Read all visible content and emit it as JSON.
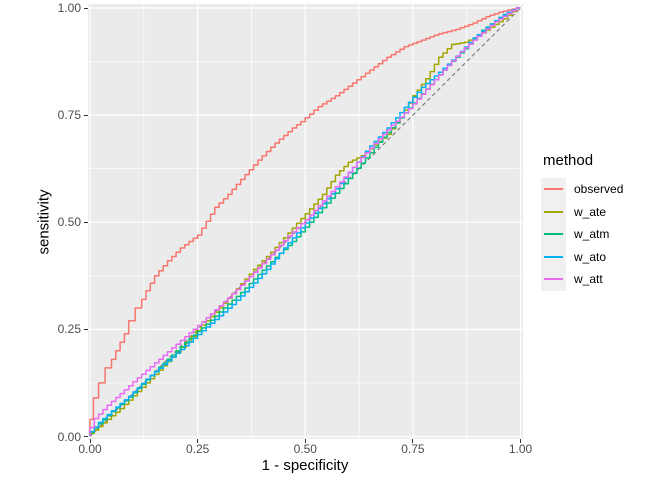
{
  "legend": {
    "title": "method",
    "items": [
      {
        "label": "observed",
        "color": "#F8766D"
      },
      {
        "label": "w_ate",
        "color": "#A3A500"
      },
      {
        "label": "w_atm",
        "color": "#00BF7D"
      },
      {
        "label": "w_ato",
        "color": "#00B0F6"
      },
      {
        "label": "w_att",
        "color": "#E76BF3"
      }
    ]
  },
  "colors": {
    "panel_background": "#EBEBEB",
    "major_grid": "#FFFFFF",
    "minor_grid": "#FFFFFF",
    "tick_text": "#4D4D4D",
    "axis_title_text": "#000000",
    "tick_mark": "#333333",
    "reference_line": "#7E7E7E"
  },
  "chart_data": {
    "type": "line",
    "title": "",
    "xlabel": "1 - specificity",
    "ylabel": "sensitivity",
    "xlim": [
      0,
      1
    ],
    "ylim": [
      0,
      1
    ],
    "grid": "on",
    "legend_position": "right",
    "x_ticks": {
      "labels": [
        "0.00",
        "0.25",
        "0.50",
        "0.75",
        "1.00"
      ],
      "values": [
        0,
        0.25,
        0.5,
        0.75,
        1.0
      ]
    },
    "y_ticks": {
      "labels": [
        "0.00",
        "0.25",
        "0.50",
        "0.75",
        "1.00"
      ],
      "values": [
        0,
        0.25,
        0.5,
        0.75,
        1.0
      ]
    },
    "minor_grid_values": [
      0.125,
      0.375,
      0.625,
      0.875
    ],
    "reference_line": {
      "style": "dashed",
      "points": [
        [
          0,
          0
        ],
        [
          1,
          1
        ]
      ],
      "color": "#7E7E7E"
    },
    "series": [
      {
        "name": "observed",
        "color": "#F8766D",
        "points": [
          [
            0,
            0
          ],
          [
            0.008,
            0.04
          ],
          [
            0.02,
            0.09
          ],
          [
            0.035,
            0.125
          ],
          [
            0.05,
            0.16
          ],
          [
            0.07,
            0.2
          ],
          [
            0.09,
            0.24
          ],
          [
            0.105,
            0.27
          ],
          [
            0.12,
            0.3
          ],
          [
            0.14,
            0.34
          ],
          [
            0.16,
            0.375
          ],
          [
            0.19,
            0.41
          ],
          [
            0.22,
            0.44
          ],
          [
            0.26,
            0.47
          ],
          [
            0.3,
            0.535
          ],
          [
            0.33,
            0.565
          ],
          [
            0.36,
            0.6
          ],
          [
            0.4,
            0.645
          ],
          [
            0.44,
            0.685
          ],
          [
            0.48,
            0.72
          ],
          [
            0.5,
            0.735
          ],
          [
            0.54,
            0.77
          ],
          [
            0.58,
            0.795
          ],
          [
            0.62,
            0.825
          ],
          [
            0.66,
            0.855
          ],
          [
            0.7,
            0.885
          ],
          [
            0.74,
            0.91
          ],
          [
            0.78,
            0.925
          ],
          [
            0.82,
            0.94
          ],
          [
            0.86,
            0.95
          ],
          [
            0.9,
            0.965
          ],
          [
            0.93,
            0.98
          ],
          [
            0.96,
            0.99
          ],
          [
            1,
            1
          ]
        ]
      },
      {
        "name": "w_ate",
        "color": "#A3A500",
        "points": [
          [
            0,
            0
          ],
          [
            0.02,
            0.015
          ],
          [
            0.05,
            0.04
          ],
          [
            0.08,
            0.065
          ],
          [
            0.11,
            0.095
          ],
          [
            0.14,
            0.125
          ],
          [
            0.17,
            0.155
          ],
          [
            0.2,
            0.185
          ],
          [
            0.235,
            0.22
          ],
          [
            0.27,
            0.26
          ],
          [
            0.31,
            0.3
          ],
          [
            0.35,
            0.345
          ],
          [
            0.39,
            0.39
          ],
          [
            0.43,
            0.43
          ],
          [
            0.47,
            0.475
          ],
          [
            0.51,
            0.52
          ],
          [
            0.55,
            0.565
          ],
          [
            0.58,
            0.61
          ],
          [
            0.61,
            0.64
          ],
          [
            0.64,
            0.655
          ],
          [
            0.67,
            0.68
          ],
          [
            0.7,
            0.705
          ],
          [
            0.73,
            0.745
          ],
          [
            0.76,
            0.795
          ],
          [
            0.79,
            0.835
          ],
          [
            0.82,
            0.885
          ],
          [
            0.85,
            0.915
          ],
          [
            0.88,
            0.92
          ],
          [
            0.91,
            0.935
          ],
          [
            0.94,
            0.955
          ],
          [
            0.97,
            0.975
          ],
          [
            1,
            1
          ]
        ]
      },
      {
        "name": "w_atm",
        "color": "#00BF7D",
        "points": [
          [
            0,
            0
          ],
          [
            0.03,
            0.03
          ],
          [
            0.06,
            0.058
          ],
          [
            0.1,
            0.092
          ],
          [
            0.13,
            0.122
          ],
          [
            0.16,
            0.152
          ],
          [
            0.2,
            0.19
          ],
          [
            0.24,
            0.228
          ],
          [
            0.28,
            0.262
          ],
          [
            0.32,
            0.3
          ],
          [
            0.36,
            0.336
          ],
          [
            0.4,
            0.378
          ],
          [
            0.44,
            0.418
          ],
          [
            0.48,
            0.455
          ],
          [
            0.52,
            0.5
          ],
          [
            0.56,
            0.545
          ],
          [
            0.6,
            0.59
          ],
          [
            0.64,
            0.638
          ],
          [
            0.68,
            0.687
          ],
          [
            0.72,
            0.732
          ],
          [
            0.76,
            0.778
          ],
          [
            0.8,
            0.822
          ],
          [
            0.84,
            0.866
          ],
          [
            0.88,
            0.905
          ],
          [
            0.92,
            0.948
          ],
          [
            0.96,
            0.978
          ],
          [
            1,
            1
          ]
        ]
      },
      {
        "name": "w_ato",
        "color": "#00B0F6",
        "points": [
          [
            0,
            0
          ],
          [
            0.03,
            0.033
          ],
          [
            0.06,
            0.06
          ],
          [
            0.1,
            0.094
          ],
          [
            0.14,
            0.134
          ],
          [
            0.18,
            0.168
          ],
          [
            0.22,
            0.203
          ],
          [
            0.26,
            0.238
          ],
          [
            0.3,
            0.273
          ],
          [
            0.34,
            0.308
          ],
          [
            0.38,
            0.348
          ],
          [
            0.42,
            0.39
          ],
          [
            0.46,
            0.44
          ],
          [
            0.5,
            0.487
          ],
          [
            0.54,
            0.532
          ],
          [
            0.58,
            0.578
          ],
          [
            0.62,
            0.628
          ],
          [
            0.66,
            0.678
          ],
          [
            0.7,
            0.72
          ],
          [
            0.74,
            0.768
          ],
          [
            0.78,
            0.815
          ],
          [
            0.82,
            0.85
          ],
          [
            0.86,
            0.888
          ],
          [
            0.9,
            0.93
          ],
          [
            0.94,
            0.962
          ],
          [
            0.97,
            0.985
          ],
          [
            1,
            1
          ]
        ]
      },
      {
        "name": "w_att",
        "color": "#E76BF3",
        "points": [
          [
            0,
            0
          ],
          [
            0.02,
            0.042
          ],
          [
            0.05,
            0.073
          ],
          [
            0.08,
            0.1
          ],
          [
            0.11,
            0.128
          ],
          [
            0.15,
            0.163
          ],
          [
            0.19,
            0.198
          ],
          [
            0.23,
            0.233
          ],
          [
            0.27,
            0.268
          ],
          [
            0.31,
            0.305
          ],
          [
            0.35,
            0.343
          ],
          [
            0.39,
            0.383
          ],
          [
            0.43,
            0.424
          ],
          [
            0.47,
            0.468
          ],
          [
            0.51,
            0.506
          ],
          [
            0.55,
            0.55
          ],
          [
            0.59,
            0.594
          ],
          [
            0.63,
            0.64
          ],
          [
            0.67,
            0.684
          ],
          [
            0.71,
            0.726
          ],
          [
            0.75,
            0.765
          ],
          [
            0.79,
            0.81
          ],
          [
            0.83,
            0.855
          ],
          [
            0.87,
            0.898
          ],
          [
            0.91,
            0.934
          ],
          [
            0.95,
            0.968
          ],
          [
            1,
            1
          ]
        ]
      }
    ]
  }
}
